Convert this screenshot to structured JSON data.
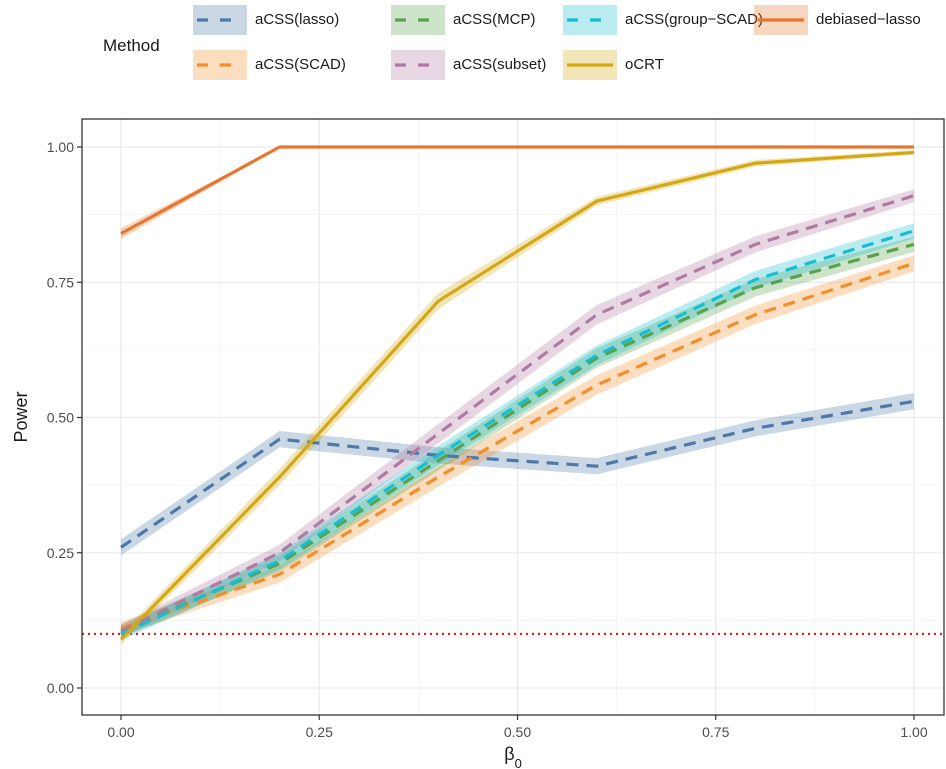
{
  "legend": {
    "title": "Method"
  },
  "chart_data": {
    "type": "line",
    "x": [
      0.0,
      0.2,
      0.4,
      0.6,
      0.8,
      1.0
    ],
    "xlabel": "β0",
    "ylabel": "Power",
    "xlim": [
      -0.05,
      1.05
    ],
    "ylim": [
      -0.05,
      1.05
    ],
    "xticks": [
      "0.00",
      "0.25",
      "0.50",
      "0.75",
      "1.00"
    ],
    "yticks": [
      "0.00",
      "0.25",
      "0.50",
      "0.75",
      "1.00"
    ],
    "grid": true,
    "legend_position": "top",
    "reference_line": {
      "y": 0.1,
      "color": "#ff0000",
      "style": "dotted"
    },
    "series": [
      {
        "name": "aCSS(lasso)",
        "color": "#4e79a7",
        "dash": "dashed",
        "values": [
          0.26,
          0.46,
          0.43,
          0.41,
          0.48,
          0.53
        ],
        "lower": [
          0.245,
          0.445,
          0.415,
          0.395,
          0.465,
          0.515
        ],
        "upper": [
          0.275,
          0.475,
          0.445,
          0.425,
          0.495,
          0.545
        ]
      },
      {
        "name": "aCSS(SCAD)",
        "color": "#f28e2b",
        "dash": "dashed",
        "values": [
          0.11,
          0.21,
          0.39,
          0.56,
          0.69,
          0.785
        ],
        "lower": [
          0.098,
          0.195,
          0.372,
          0.542,
          0.673,
          0.77
        ],
        "upper": [
          0.122,
          0.225,
          0.408,
          0.578,
          0.707,
          0.8
        ]
      },
      {
        "name": "aCSS(MCP)",
        "color": "#59a14f",
        "dash": "dashed",
        "values": [
          0.105,
          0.23,
          0.42,
          0.61,
          0.74,
          0.82
        ],
        "lower": [
          0.093,
          0.215,
          0.402,
          0.592,
          0.724,
          0.806
        ],
        "upper": [
          0.117,
          0.245,
          0.438,
          0.628,
          0.756,
          0.834
        ]
      },
      {
        "name": "aCSS(subset)",
        "color": "#b07aa1",
        "dash": "dashed",
        "values": [
          0.105,
          0.25,
          0.47,
          0.69,
          0.82,
          0.91
        ],
        "lower": [
          0.093,
          0.235,
          0.452,
          0.672,
          0.805,
          0.898
        ],
        "upper": [
          0.117,
          0.265,
          0.488,
          0.708,
          0.835,
          0.922
        ]
      },
      {
        "name": "aCSS(group−SCAD)",
        "color": "#17becf",
        "dash": "dashed",
        "values": [
          0.1,
          0.235,
          0.43,
          0.615,
          0.755,
          0.845
        ],
        "lower": [
          0.088,
          0.22,
          0.412,
          0.597,
          0.739,
          0.831
        ],
        "upper": [
          0.112,
          0.25,
          0.448,
          0.633,
          0.771,
          0.859
        ]
      },
      {
        "name": "oCRT",
        "color": "#d4a814",
        "dash": "solid",
        "values": [
          0.09,
          0.39,
          0.715,
          0.9,
          0.97,
          0.99
        ],
        "lower": [
          0.08,
          0.375,
          0.7,
          0.892,
          0.964,
          0.986
        ],
        "upper": [
          0.1,
          0.405,
          0.73,
          0.908,
          0.976,
          0.994
        ]
      },
      {
        "name": "debiased−lasso",
        "color": "#e6772e",
        "dash": "solid",
        "values": [
          0.84,
          1.0,
          1.0,
          1.0,
          1.0,
          1.0
        ],
        "lower": [
          0.83,
          0.998,
          0.998,
          0.998,
          0.998,
          0.998
        ],
        "upper": [
          0.85,
          1.0,
          1.0,
          1.0,
          1.0,
          1.0
        ]
      }
    ]
  }
}
